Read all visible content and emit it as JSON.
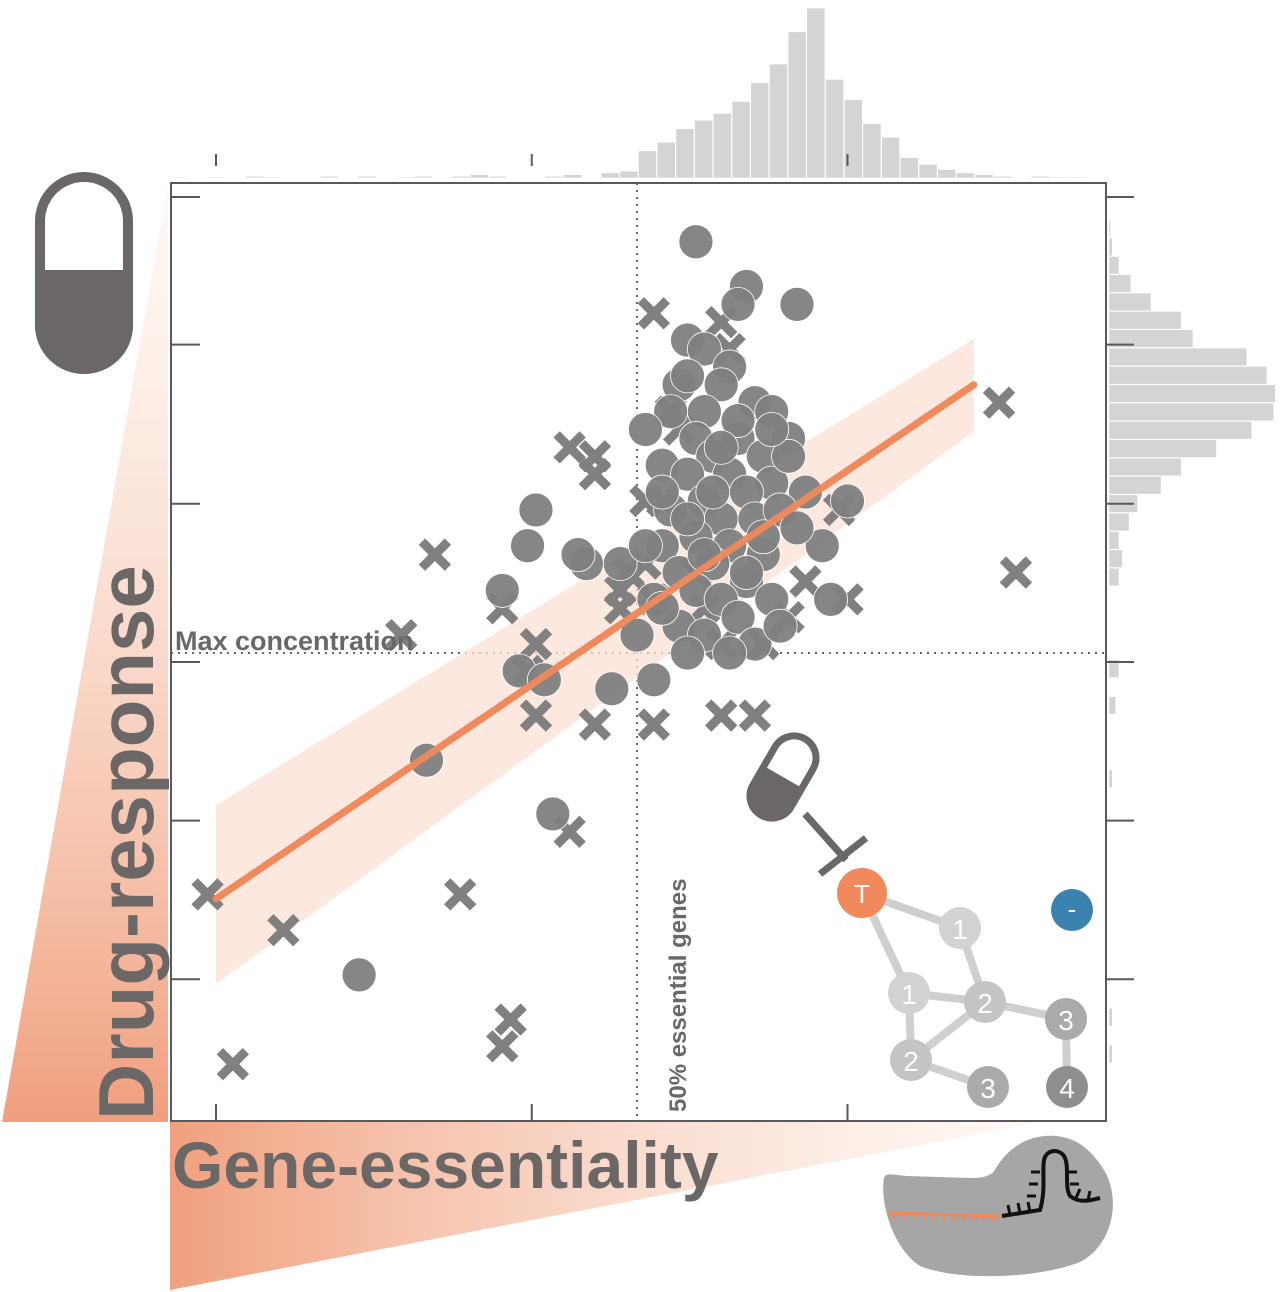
{
  "chart_data": {
    "type": "scatter",
    "title": "",
    "xlabel": "Gene-essentiality",
    "ylabel": "Drug-response",
    "xlim": [
      0,
      1
    ],
    "ylim": [
      0,
      1
    ],
    "grid": false,
    "reference_lines": {
      "vertical": {
        "x": 0.5,
        "label": "50% essential genes"
      },
      "horizontal": {
        "y": 0.5,
        "label": "Max concentration"
      }
    },
    "regression": {
      "x": [
        0.0,
        0.9
      ],
      "y": [
        0.225,
        0.8
      ],
      "band": {
        "x": [
          0.0,
          0.9
        ],
        "lower": [
          0.13,
          0.79
        ],
        "upper": [
          0.33,
          0.82
        ]
      }
    },
    "circles": [
      {
        "x": 0.57,
        "y": 0.96
      },
      {
        "x": 0.63,
        "y": 0.91
      },
      {
        "x": 0.62,
        "y": 0.89
      },
      {
        "x": 0.69,
        "y": 0.89
      },
      {
        "x": 0.56,
        "y": 0.85
      },
      {
        "x": 0.58,
        "y": 0.84
      },
      {
        "x": 0.61,
        "y": 0.82
      },
      {
        "x": 0.55,
        "y": 0.8
      },
      {
        "x": 0.6,
        "y": 0.8
      },
      {
        "x": 0.64,
        "y": 0.78
      },
      {
        "x": 0.66,
        "y": 0.77
      },
      {
        "x": 0.58,
        "y": 0.77
      },
      {
        "x": 0.54,
        "y": 0.77
      },
      {
        "x": 0.51,
        "y": 0.75
      },
      {
        "x": 0.57,
        "y": 0.74
      },
      {
        "x": 0.62,
        "y": 0.74
      },
      {
        "x": 0.68,
        "y": 0.74
      },
      {
        "x": 0.65,
        "y": 0.72
      },
      {
        "x": 0.59,
        "y": 0.72
      },
      {
        "x": 0.53,
        "y": 0.71
      },
      {
        "x": 0.56,
        "y": 0.7
      },
      {
        "x": 0.61,
        "y": 0.7
      },
      {
        "x": 0.66,
        "y": 0.69
      },
      {
        "x": 0.63,
        "y": 0.68
      },
      {
        "x": 0.7,
        "y": 0.68
      },
      {
        "x": 0.58,
        "y": 0.67
      },
      {
        "x": 0.54,
        "y": 0.66
      },
      {
        "x": 0.6,
        "y": 0.65
      },
      {
        "x": 0.64,
        "y": 0.65
      },
      {
        "x": 0.67,
        "y": 0.66
      },
      {
        "x": 0.57,
        "y": 0.63
      },
      {
        "x": 0.53,
        "y": 0.62
      },
      {
        "x": 0.61,
        "y": 0.62
      },
      {
        "x": 0.65,
        "y": 0.61
      },
      {
        "x": 0.59,
        "y": 0.6
      },
      {
        "x": 0.55,
        "y": 0.59
      },
      {
        "x": 0.63,
        "y": 0.58
      },
      {
        "x": 0.57,
        "y": 0.57
      },
      {
        "x": 0.52,
        "y": 0.56
      },
      {
        "x": 0.6,
        "y": 0.56
      },
      {
        "x": 0.66,
        "y": 0.56
      },
      {
        "x": 0.72,
        "y": 0.62
      },
      {
        "x": 0.75,
        "y": 0.67
      },
      {
        "x": 0.73,
        "y": 0.56
      },
      {
        "x": 0.62,
        "y": 0.54
      },
      {
        "x": 0.55,
        "y": 0.53
      },
      {
        "x": 0.58,
        "y": 0.52
      },
      {
        "x": 0.5,
        "y": 0.52
      },
      {
        "x": 0.64,
        "y": 0.51
      },
      {
        "x": 0.61,
        "y": 0.5
      },
      {
        "x": 0.67,
        "y": 0.53
      },
      {
        "x": 0.56,
        "y": 0.5
      },
      {
        "x": 0.52,
        "y": 0.47
      },
      {
        "x": 0.68,
        "y": 0.72
      },
      {
        "x": 0.62,
        "y": 0.76
      },
      {
        "x": 0.56,
        "y": 0.81
      },
      {
        "x": 0.65,
        "y": 0.63
      },
      {
        "x": 0.53,
        "y": 0.68
      },
      {
        "x": 0.69,
        "y": 0.64
      },
      {
        "x": 0.48,
        "y": 0.6
      },
      {
        "x": 0.44,
        "y": 0.6
      },
      {
        "x": 0.38,
        "y": 0.66
      },
      {
        "x": 0.37,
        "y": 0.62
      },
      {
        "x": 0.34,
        "y": 0.57
      },
      {
        "x": 0.43,
        "y": 0.61
      },
      {
        "x": 0.53,
        "y": 0.55
      },
      {
        "x": 0.36,
        "y": 0.48
      },
      {
        "x": 0.47,
        "y": 0.46
      },
      {
        "x": 0.39,
        "y": 0.47
      },
      {
        "x": 0.25,
        "y": 0.38
      },
      {
        "x": 0.4,
        "y": 0.32
      },
      {
        "x": 0.17,
        "y": 0.14
      },
      {
        "x": 0.59,
        "y": 0.68
      },
      {
        "x": 0.6,
        "y": 0.73
      },
      {
        "x": 0.58,
        "y": 0.61
      },
      {
        "x": 0.56,
        "y": 0.65
      },
      {
        "x": 0.63,
        "y": 0.59
      },
      {
        "x": 0.66,
        "y": 0.75
      },
      {
        "x": 0.51,
        "y": 0.62
      }
    ],
    "crosses": [
      {
        "x": 0.52,
        "y": 0.88
      },
      {
        "x": 0.6,
        "y": 0.87
      },
      {
        "x": 0.61,
        "y": 0.84
      },
      {
        "x": 0.54,
        "y": 0.77
      },
      {
        "x": 0.55,
        "y": 0.75
      },
      {
        "x": 0.42,
        "y": 0.73
      },
      {
        "x": 0.45,
        "y": 0.72
      },
      {
        "x": 0.45,
        "y": 0.7
      },
      {
        "x": 0.53,
        "y": 0.67
      },
      {
        "x": 0.51,
        "y": 0.67
      },
      {
        "x": 0.26,
        "y": 0.61
      },
      {
        "x": 0.51,
        "y": 0.6
      },
      {
        "x": 0.49,
        "y": 0.59
      },
      {
        "x": 0.48,
        "y": 0.57
      },
      {
        "x": 0.52,
        "y": 0.56
      },
      {
        "x": 0.48,
        "y": 0.55
      },
      {
        "x": 0.34,
        "y": 0.55
      },
      {
        "x": 0.22,
        "y": 0.52
      },
      {
        "x": 0.38,
        "y": 0.51
      },
      {
        "x": 0.37,
        "y": 0.48
      },
      {
        "x": 0.57,
        "y": 0.59
      },
      {
        "x": 0.74,
        "y": 0.66
      },
      {
        "x": 0.7,
        "y": 0.58
      },
      {
        "x": 0.75,
        "y": 0.56
      },
      {
        "x": 0.65,
        "y": 0.51
      },
      {
        "x": 0.93,
        "y": 0.78
      },
      {
        "x": 0.95,
        "y": 0.59
      },
      {
        "x": 0.6,
        "y": 0.51
      },
      {
        "x": 0.38,
        "y": 0.43
      },
      {
        "x": 0.45,
        "y": 0.42
      },
      {
        "x": 0.52,
        "y": 0.42
      },
      {
        "x": 0.6,
        "y": 0.43
      },
      {
        "x": 0.64,
        "y": 0.43
      },
      {
        "x": 0.42,
        "y": 0.3
      },
      {
        "x": 0.29,
        "y": 0.23
      },
      {
        "x": -0.01,
        "y": 0.23
      },
      {
        "x": 0.08,
        "y": 0.19
      },
      {
        "x": 0.35,
        "y": 0.09
      },
      {
        "x": 0.34,
        "y": 0.06
      },
      {
        "x": 0.02,
        "y": 0.04
      },
      {
        "x": 0.58,
        "y": 0.55
      },
      {
        "x": 0.68,
        "y": 0.54
      }
    ],
    "x_histogram": [
      0.005,
      0.0,
      0.005,
      0.0,
      0.01,
      0.005,
      0.0,
      0.0,
      0.01,
      0.0,
      0.01,
      0.0,
      0.005,
      0.01,
      0.0,
      0.01,
      0.02,
      0.01,
      0.0,
      0.0,
      0.01,
      0.02,
      0.0,
      0.03,
      0.04,
      0.16,
      0.21,
      0.29,
      0.34,
      0.38,
      0.45,
      0.56,
      0.67,
      0.86,
      1.0,
      0.58,
      0.46,
      0.32,
      0.24,
      0.12,
      0.08,
      0.05,
      0.03,
      0.02,
      0.01,
      0.0,
      0.01,
      0.005,
      0.005,
      0.0
    ],
    "y_histogram": [
      0.0,
      0.0,
      0.02,
      0.0,
      0.02,
      0.0,
      0.0,
      0.0,
      0.0,
      0.0,
      0.0,
      0.0,
      0.0,
      0.0,
      0.0,
      0.0,
      0.0,
      0.02,
      0.0,
      0.0,
      0.0,
      0.04,
      0.0,
      0.06,
      0.0,
      0.0,
      0.0,
      0.0,
      0.06,
      0.08,
      0.06,
      0.12,
      0.17,
      0.31,
      0.43,
      0.64,
      0.85,
      0.98,
      0.99,
      0.94,
      0.82,
      0.5,
      0.43,
      0.25,
      0.13,
      0.06,
      0.02,
      0.01,
      0.0,
      0.0
    ],
    "colors": {
      "points": "#808080",
      "regression": "#f08a5d",
      "band": "#fbe0d3",
      "histogram": "#d4d4d4",
      "frame": "#58595b",
      "text": "#6b6766",
      "target_node": "#f08a5d",
      "negative_node": "#3b83ae"
    }
  },
  "network": {
    "target_label": "T",
    "negative_label": "-",
    "nodes": [
      {
        "id": "n1a",
        "label": "1",
        "shade": "#d2d2d2"
      },
      {
        "id": "n1b",
        "label": "1",
        "shade": "#d2d2d2"
      },
      {
        "id": "n2a",
        "label": "2",
        "shade": "#c4c4c4"
      },
      {
        "id": "n2b",
        "label": "2",
        "shade": "#c4c4c4"
      },
      {
        "id": "n3a",
        "label": "3",
        "shade": "#aaaaaa"
      },
      {
        "id": "n3b",
        "label": "3",
        "shade": "#aaaaaa"
      },
      {
        "id": "n4",
        "label": "4",
        "shade": "#8e8e8e"
      }
    ]
  },
  "icons": [
    "pill-icon",
    "small-pill-icon",
    "inhibition-icon",
    "crispr-cas9-icon"
  ]
}
